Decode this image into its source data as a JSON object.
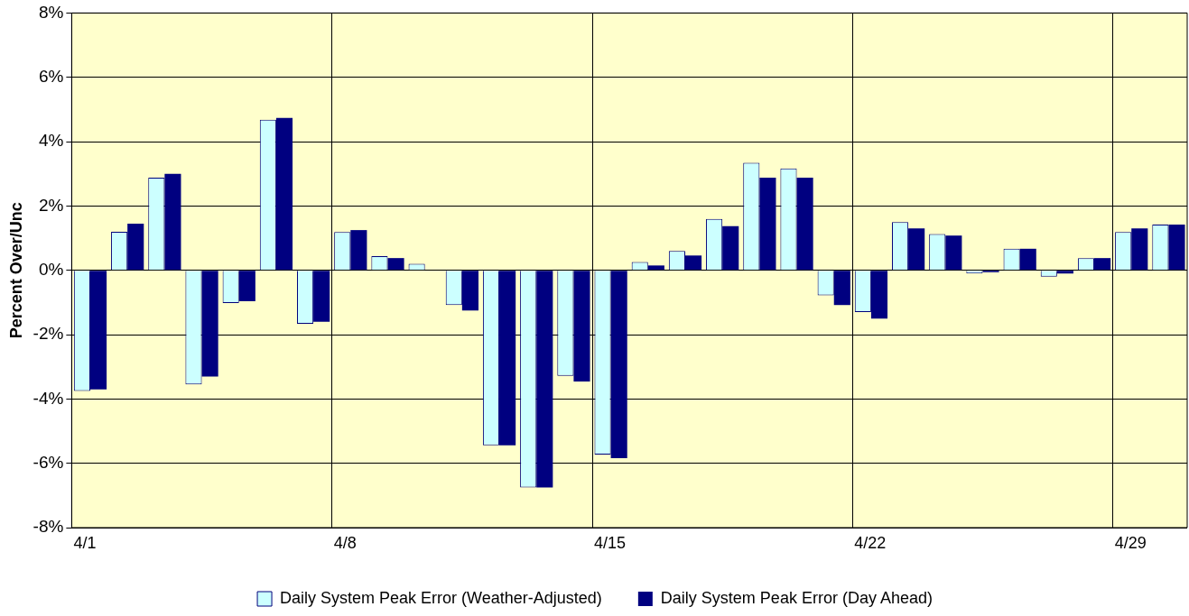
{
  "chart_data": {
    "type": "bar",
    "ylabel": "Percent Over/Unc",
    "categories": [
      "4/1",
      null,
      null,
      null,
      null,
      null,
      null,
      "4/8",
      null,
      null,
      null,
      null,
      null,
      null,
      "4/15",
      null,
      null,
      null,
      null,
      null,
      null,
      "4/22",
      null,
      null,
      null,
      null,
      null,
      null,
      "4/29",
      null
    ],
    "series": [
      {
        "name": "Daily System Peak Error (Weather-Adjusted)",
        "color": "#ccffff",
        "values": [
          -3.75,
          1.2,
          2.88,
          -3.55,
          -1.02,
          4.68,
          -1.66,
          1.19,
          0.44,
          0.2,
          -1.08,
          -5.44,
          -6.75,
          -3.28,
          -5.73,
          0.26,
          0.6,
          1.6,
          3.34,
          3.17,
          -0.78,
          -1.3,
          1.5,
          1.13,
          -0.1,
          0.67,
          -0.2,
          0.38,
          1.19,
          1.42
        ]
      },
      {
        "name": "Daily System Peak Error (Day Ahead)",
        "color": "#000080",
        "values": [
          -3.7,
          1.45,
          3.0,
          -3.3,
          -0.96,
          4.74,
          -1.6,
          1.25,
          0.38,
          0,
          -1.25,
          -5.44,
          -6.75,
          -3.46,
          -5.84,
          0.15,
          0.46,
          1.37,
          2.88,
          2.88,
          -1.08,
          -1.5,
          1.3,
          1.08,
          -0.06,
          0.67,
          -0.1,
          0.38,
          1.3,
          1.42
        ]
      }
    ],
    "ylim": [
      -8,
      8
    ],
    "yticks": [
      {
        "value": -8,
        "label": "-8%"
      },
      {
        "value": -6,
        "label": "-6%"
      },
      {
        "value": -4,
        "label": "-4%"
      },
      {
        "value": -2,
        "label": "-2%"
      },
      {
        "value": 0,
        "label": "0%"
      },
      {
        "value": 2,
        "label": "2%"
      },
      {
        "value": 4,
        "label": "4%"
      },
      {
        "value": 6,
        "label": "6%"
      },
      {
        "value": 8,
        "label": "8%"
      }
    ],
    "grid": true,
    "legend": "bottom"
  }
}
